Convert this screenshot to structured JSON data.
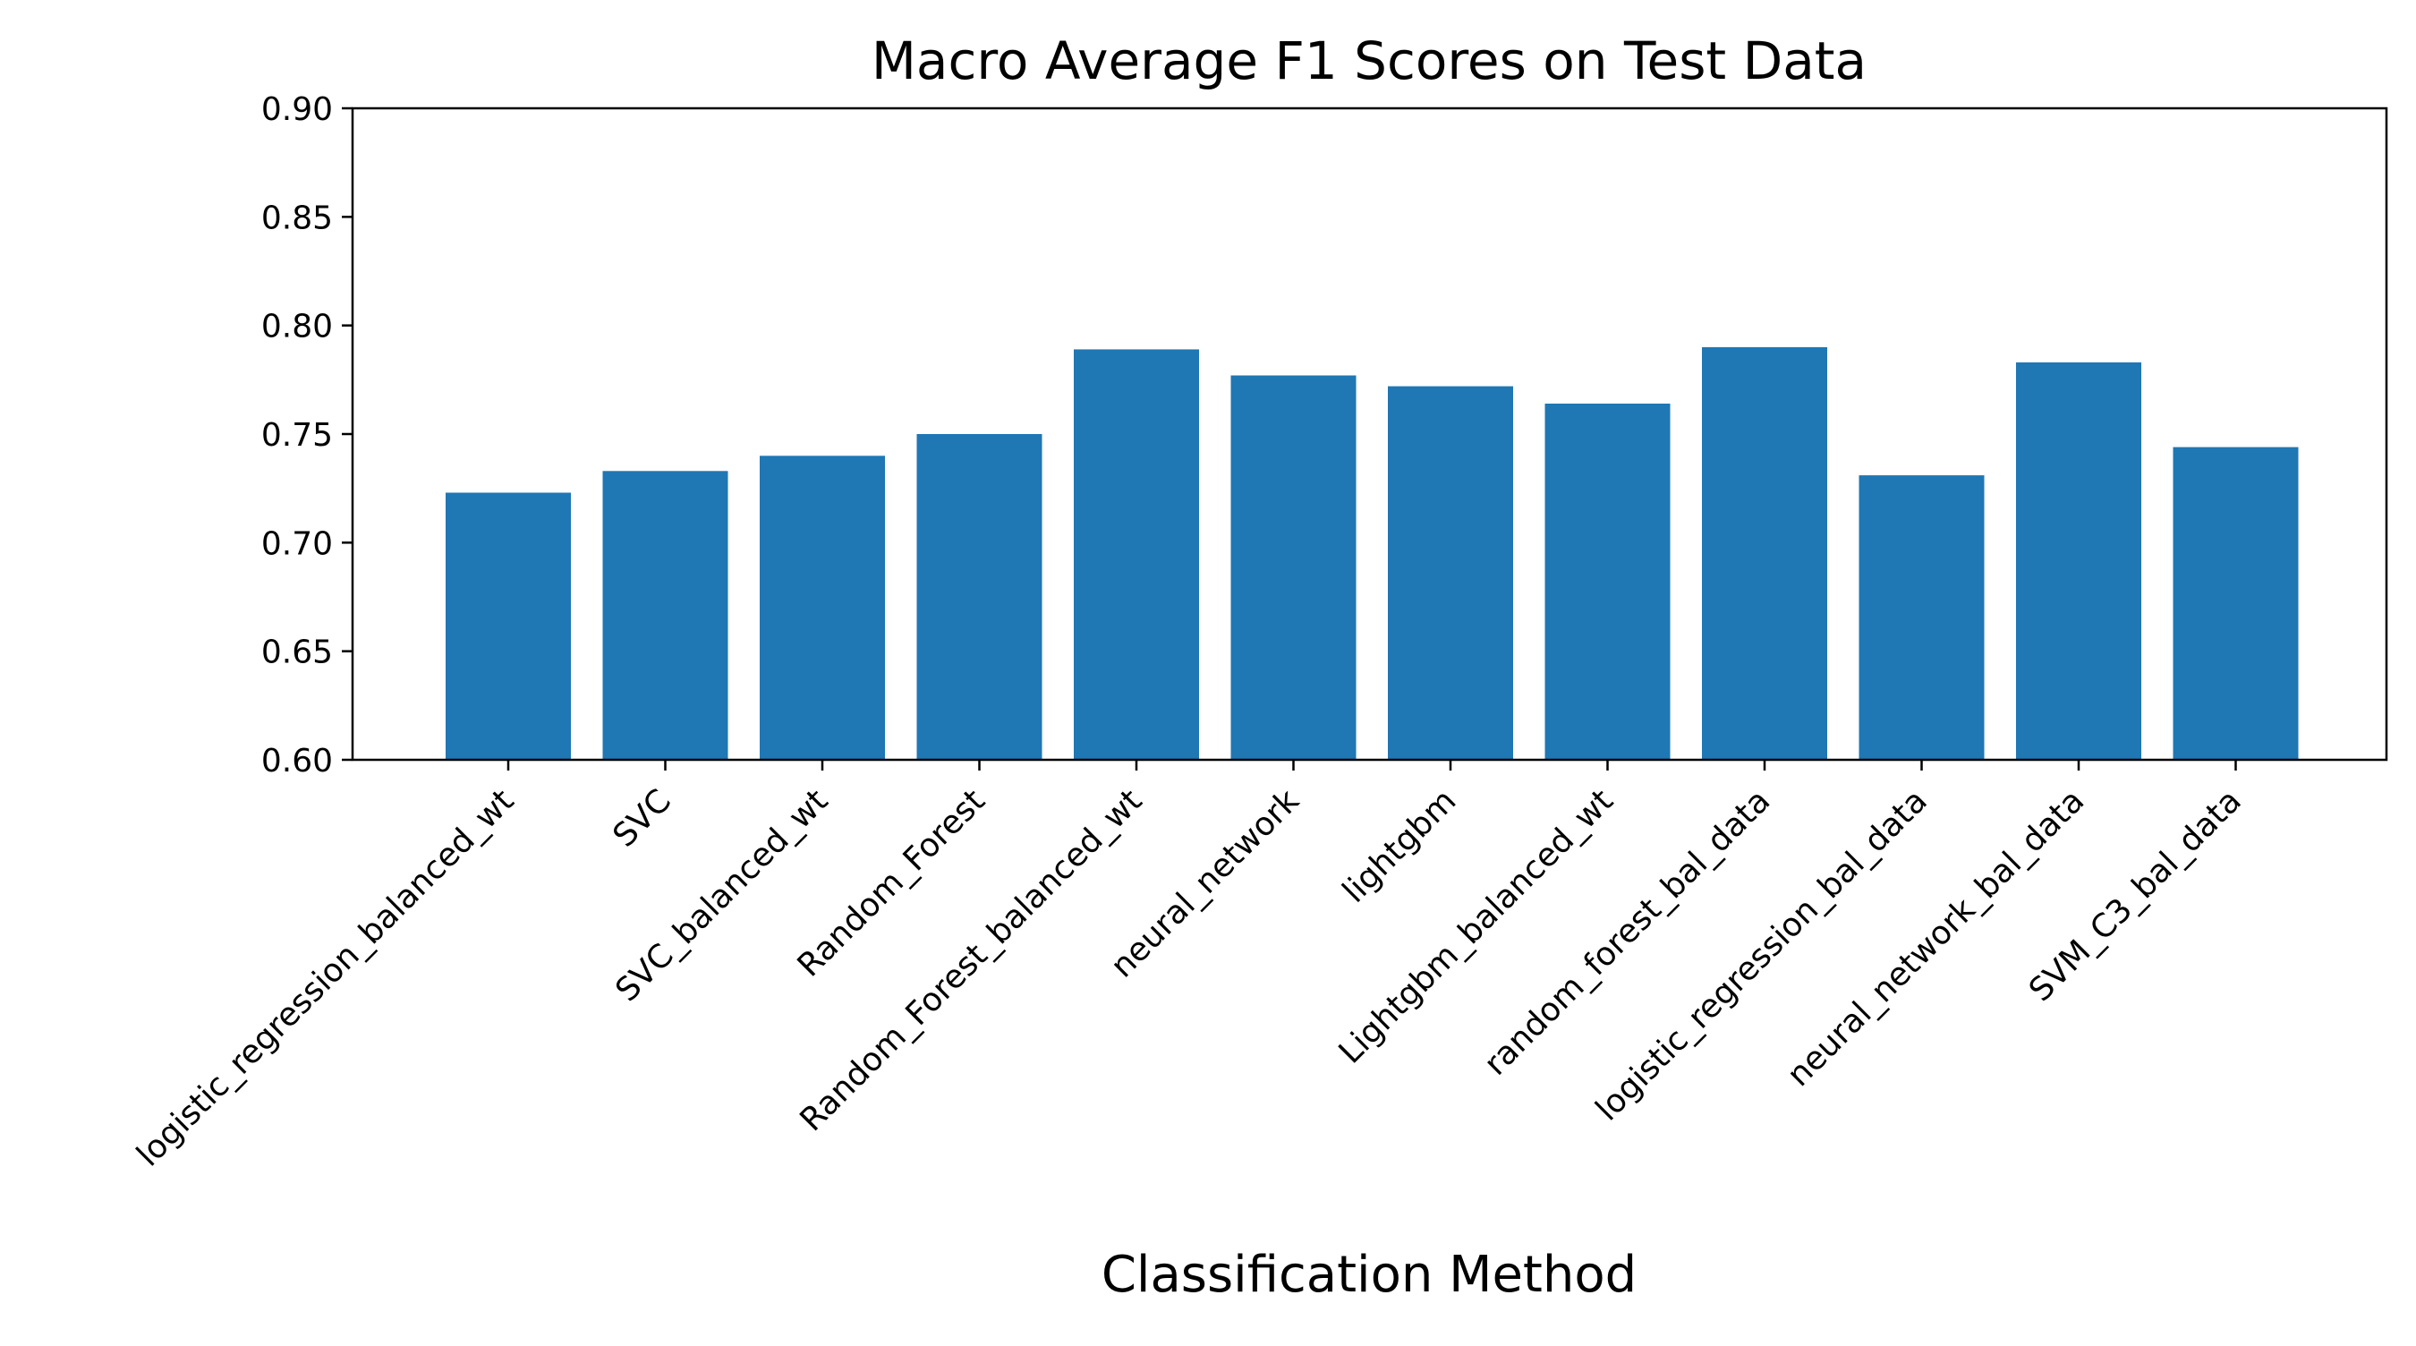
{
  "chart_data": {
    "type": "bar",
    "title": "Macro Average F1 Scores on Test Data",
    "xlabel": "Classification Method",
    "ylabel": "",
    "ylim": [
      0.6,
      0.9
    ],
    "yticks": [
      "0.60",
      "0.65",
      "0.70",
      "0.75",
      "0.80",
      "0.85",
      "0.90"
    ],
    "grid": false,
    "bar_color": "#1f77b4",
    "categories": [
      "logistic_regression_balanced_wt",
      "SVC",
      "SVC_balanced_wt",
      "Random_Forest",
      "Random_Forest_balanced_wt",
      "neural_network",
      "lightgbm",
      "Lightgbm_balanced_wt",
      "random_forest_bal_data",
      "logistic_regression_bal_data",
      "neural_network_bal_data",
      "SVM_C3_bal_data"
    ],
    "values": [
      0.723,
      0.733,
      0.74,
      0.75,
      0.789,
      0.777,
      0.772,
      0.764,
      0.79,
      0.731,
      0.783,
      0.744
    ]
  }
}
